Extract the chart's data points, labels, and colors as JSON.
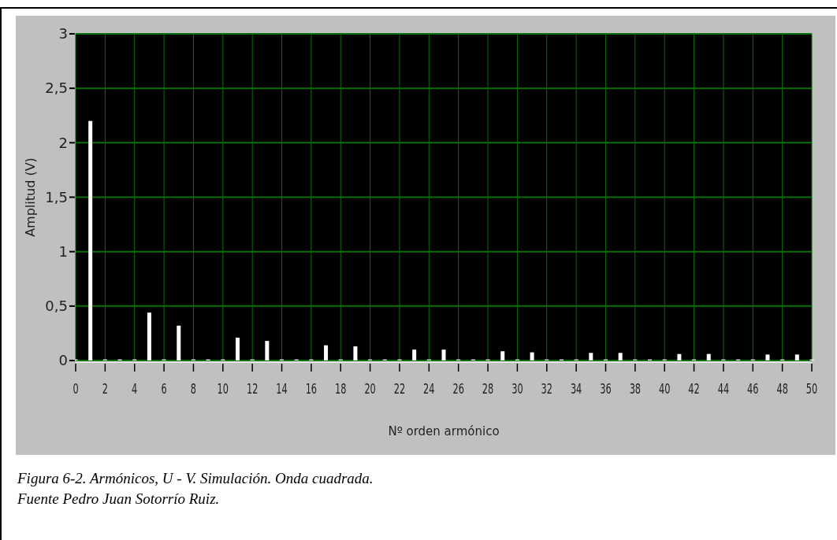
{
  "chart_data": {
    "type": "bar",
    "xlabel": "Nº orden armónico",
    "ylabel": "Amplitud (V)",
    "x": [
      0,
      1,
      2,
      3,
      4,
      5,
      6,
      7,
      8,
      9,
      10,
      11,
      12,
      13,
      14,
      15,
      16,
      17,
      18,
      19,
      20,
      21,
      22,
      23,
      24,
      25,
      26,
      27,
      28,
      29,
      30,
      31,
      32,
      33,
      34,
      35,
      36,
      37,
      38,
      39,
      40,
      41,
      42,
      43,
      44,
      45,
      46,
      47,
      48,
      49,
      50
    ],
    "values": [
      0.01,
      2.2,
      0.01,
      0.01,
      0.01,
      0.44,
      0.01,
      0.32,
      0.01,
      0.01,
      0.01,
      0.21,
      0.01,
      0.18,
      0.01,
      0.01,
      0.01,
      0.14,
      0.01,
      0.13,
      0.01,
      0.01,
      0.01,
      0.1,
      0.01,
      0.1,
      0.01,
      0.01,
      0.01,
      0.085,
      0.01,
      0.075,
      0.01,
      0.01,
      0.01,
      0.07,
      0.01,
      0.07,
      0.01,
      0.01,
      0.01,
      0.06,
      0.01,
      0.06,
      0.01,
      0.01,
      0.01,
      0.055,
      0.01,
      0.055,
      0.01
    ],
    "color": "#ffffff",
    "xlim": [
      0,
      50
    ],
    "xticks": [
      0,
      2,
      4,
      6,
      8,
      10,
      12,
      14,
      16,
      18,
      20,
      22,
      24,
      26,
      28,
      30,
      32,
      34,
      36,
      38,
      40,
      42,
      44,
      46,
      48,
      50
    ],
    "ylim": [
      0,
      3
    ],
    "yticks": [
      0,
      {
        "value": 0.5,
        "label": "0,5"
      },
      1,
      {
        "value": 1.5,
        "label": "1,5"
      },
      2,
      {
        "value": 2.5,
        "label": "2,5"
      },
      3
    ],
    "grid": true,
    "annotations": [
      "Figura 6-2. Armónicos, U - V. Simulación. Onda cuadrada.",
      "Fuente Pedro Juan Sotorrío Ruiz."
    ]
  }
}
